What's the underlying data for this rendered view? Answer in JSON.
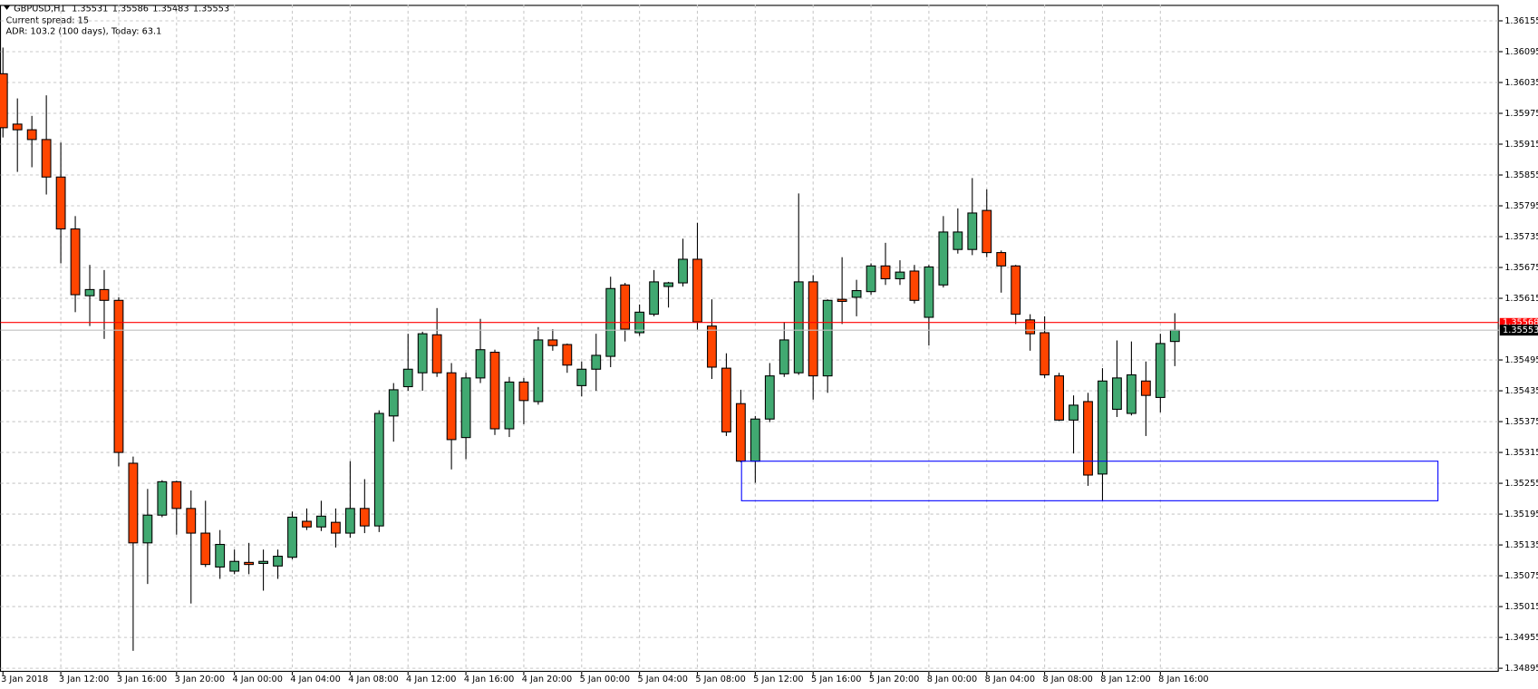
{
  "chart_data": {
    "type": "candlestick",
    "symbol": "GBPUSD,H1",
    "annotations": [
      "Current spread: 15",
      "ADR: 103.2 (100 days), Today: 63.1"
    ],
    "categories": [
      "3 Jan 2018",
      null,
      null,
      null,
      "3 Jan 12:00",
      null,
      null,
      null,
      "3 Jan 16:00",
      null,
      null,
      null,
      "3 Jan 20:00",
      null,
      null,
      null,
      "4 Jan 00:00",
      null,
      null,
      null,
      "4 Jan 04:00",
      null,
      null,
      null,
      "4 Jan 08:00",
      null,
      null,
      null,
      "4 Jan 12:00",
      null,
      null,
      null,
      "4 Jan 16:00",
      null,
      null,
      null,
      "4 Jan 20:00",
      null,
      null,
      null,
      "5 Jan 00:00",
      null,
      null,
      null,
      "5 Jan 04:00",
      null,
      null,
      null,
      "5 Jan 08:00",
      null,
      null,
      null,
      "5 Jan 12:00",
      null,
      null,
      null,
      "5 Jan 16:00",
      null,
      null,
      null,
      "5 Jan 20:00",
      null,
      null,
      null,
      "8 Jan 00:00",
      null,
      null,
      null,
      "8 Jan 04:00",
      null,
      null,
      null,
      "8 Jan 08:00",
      null,
      null,
      null,
      "8 Jan 12:00",
      null,
      null,
      null,
      "8 Jan 16:00",
      null
    ],
    "open": [
      1.36052,
      1.35954,
      1.35943,
      1.35924,
      1.35851,
      1.3575,
      1.3562,
      1.35632,
      1.35611,
      1.35294,
      1.35139,
      1.35193,
      1.35258,
      1.35206,
      1.35158,
      1.35092,
      1.35084,
      1.35101,
      1.35099,
      1.35094,
      1.35111,
      1.35181,
      1.3517,
      1.35179,
      1.35158,
      1.35206,
      1.35172,
      1.35386,
      1.35443,
      1.3547,
      1.35544,
      1.3547,
      1.35344,
      1.3546,
      1.3551,
      1.35361,
      1.35452,
      1.35414,
      1.35534,
      1.35525,
      1.35445,
      1.35477,
      1.35502,
      1.35641,
      1.35548,
      1.35584,
      1.35638,
      1.35645,
      1.35691,
      1.35561,
      1.35479,
      1.3541,
      1.35298,
      1.3538,
      1.35468,
      1.3547,
      1.35647,
      1.35464,
      1.35613,
      1.35617,
      1.35628,
      1.35678,
      1.35653,
      1.35668,
      1.35578,
      1.35641,
      1.3571,
      1.3571,
      1.35786,
      1.35704,
      1.35678,
      1.35573,
      1.35548,
      1.35464,
      1.35378,
      1.35414,
      1.35273,
      1.35399,
      1.35391,
      1.35454,
      1.35422,
      1.35531
    ],
    "high": [
      1.36103,
      1.36004,
      1.3597,
      1.3601,
      1.35918,
      1.35775,
      1.3568,
      1.3567,
      1.35617,
      1.35307,
      1.35244,
      1.35261,
      1.3526,
      1.35241,
      1.35221,
      1.35164,
      1.35126,
      1.35139,
      1.35126,
      1.35126,
      1.352,
      1.35206,
      1.35221,
      1.35206,
      1.35298,
      1.35263,
      1.35397,
      1.3545,
      1.35546,
      1.3555,
      1.35596,
      1.35489,
      1.3547,
      1.35575,
      1.35515,
      1.35462,
      1.3546,
      1.35559,
      1.35555,
      1.35527,
      1.35492,
      1.35546,
      1.35657,
      1.35645,
      1.35603,
      1.3567,
      1.35647,
      1.35731,
      1.35762,
      1.35613,
      1.35508,
      1.35437,
      1.35386,
      1.35489,
      1.35569,
      1.35819,
      1.3566,
      1.35613,
      1.35695,
      1.35651,
      1.35683,
      1.35723,
      1.35689,
      1.3568,
      1.3568,
      1.35775,
      1.3579,
      1.35849,
      1.35827,
      1.35708,
      1.3568,
      1.35584,
      1.3558,
      1.3547,
      1.35426,
      1.35431,
      1.35479,
      1.35533,
      1.35531,
      1.35492,
      1.35546,
      1.35586
    ],
    "low": [
      1.35928,
      1.35861,
      1.3587,
      1.35817,
      1.35683,
      1.35588,
      1.35561,
      1.35536,
      1.35288,
      1.34929,
      1.35059,
      1.35189,
      1.35155,
      1.35021,
      1.35092,
      1.35069,
      1.35078,
      1.35078,
      1.35046,
      1.35069,
      1.35107,
      1.35164,
      1.35162,
      1.3513,
      1.35149,
      1.35158,
      1.3516,
      1.35336,
      1.35435,
      1.35435,
      1.35462,
      1.35282,
      1.35302,
      1.3545,
      1.35349,
      1.35345,
      1.3537,
      1.35408,
      1.35513,
      1.3547,
      1.35424,
      1.35435,
      1.35481,
      1.35531,
      1.35542,
      1.3558,
      1.35597,
      1.35638,
      1.35554,
      1.35458,
      1.35347,
      1.35296,
      1.35256,
      1.35374,
      1.35462,
      1.35466,
      1.35418,
      1.35431,
      1.35565,
      1.3558,
      1.35622,
      1.35641,
      1.35641,
      1.35605,
      1.35523,
      1.35636,
      1.35702,
      1.35699,
      1.35695,
      1.35626,
      1.35565,
      1.35513,
      1.3546,
      1.35376,
      1.35313,
      1.3525,
      1.35221,
      1.35384,
      1.35387,
      1.35347,
      1.35393,
      1.35483
    ],
    "close": [
      1.35947,
      1.35943,
      1.35924,
      1.35851,
      1.3575,
      1.35622,
      1.35632,
      1.35611,
      1.35315,
      1.35139,
      1.35193,
      1.35258,
      1.35206,
      1.35158,
      1.35097,
      1.35136,
      1.35103,
      1.35097,
      1.35103,
      1.35113,
      1.35189,
      1.3517,
      1.35191,
      1.35158,
      1.35206,
      1.35172,
      1.35391,
      1.35437,
      1.35477,
      1.35546,
      1.3547,
      1.3534,
      1.3546,
      1.35515,
      1.35361,
      1.35452,
      1.35416,
      1.35534,
      1.35523,
      1.35485,
      1.35477,
      1.35504,
      1.35634,
      1.35555,
      1.35588,
      1.35647,
      1.35645,
      1.35691,
      1.35569,
      1.35481,
      1.35355,
      1.35298,
      1.3538,
      1.35464,
      1.35534,
      1.35647,
      1.35464,
      1.35611,
      1.35609,
      1.3563,
      1.35678,
      1.35653,
      1.35666,
      1.35611,
      1.35676,
      1.35744,
      1.35744,
      1.35781,
      1.35704,
      1.35678,
      1.35584,
      1.35546,
      1.35466,
      1.35378,
      1.35407,
      1.35271,
      1.35454,
      1.3546,
      1.35466,
      1.35426,
      1.35527,
      1.35553
    ],
    "up_color": "#41a971",
    "down_color": "#ff4500",
    "ask": 1.35568,
    "ask_color": "#ff0000",
    "zone": [
      1.35221,
      1.35298
    ],
    "zone_color": "#0000ff",
    "ylim": [
      1.34889,
      1.36186
    ],
    "yticks": [
      1.36155,
      1.36095,
      1.36035,
      1.35975,
      1.35915,
      1.35855,
      1.35795,
      1.35735,
      1.35675,
      1.35615,
      1.35495,
      1.35435,
      1.35375,
      1.35315,
      1.35255,
      1.35195,
      1.35135,
      1.35075,
      1.35015,
      1.34955,
      1.34895
    ],
    "grid": true
  }
}
